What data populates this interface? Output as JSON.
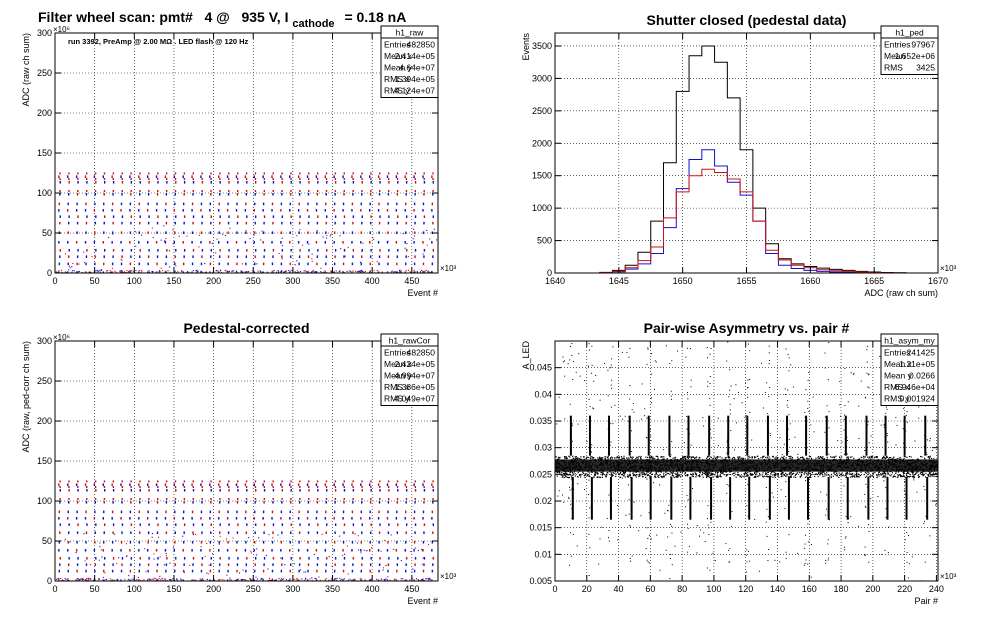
{
  "page_title": {
    "prefix": "Filter wheel scan: pmt#   4 @   935 V, I",
    "subscript": "cathode",
    "suffix": "= 0.18 nA"
  },
  "chart_data": [
    {
      "id": "raw",
      "type": "scatter",
      "title": "",
      "annotation": "run 3392, PreAmp @ 2.00 MΩ . LED flash @  120 Hz",
      "xlabel": "Event #",
      "ylabel": "ADC (raw ch sum)",
      "x_exponent": "×10³",
      "y_exponent": "×10⁶",
      "xlim": [
        0,
        483
      ],
      "ylim": [
        0,
        300
      ],
      "xticks": [
        0,
        50,
        100,
        150,
        200,
        250,
        300,
        350,
        400,
        450
      ],
      "yticks": [
        0,
        50,
        100,
        150,
        200,
        250,
        300
      ],
      "levels": [
        2,
        13,
        22,
        30,
        40,
        52,
        64,
        72,
        80,
        88,
        100,
        115,
        122
      ],
      "stats": {
        "name": "h1_raw",
        "rows": [
          [
            "Entries",
            "482850"
          ],
          [
            "Mean x",
            "2.414e+05"
          ],
          [
            "Mean y",
            "4.64e+07"
          ],
          [
            "RMS x",
            "1.394e+05"
          ],
          [
            "RMS y",
            "4.124e+07"
          ]
        ]
      },
      "grid": true
    },
    {
      "id": "ped",
      "type": "line",
      "title": "Shutter closed (pedestal data)",
      "xlabel": "ADC (raw ch sum)",
      "ylabel": "Events",
      "x_exponent": "×10³",
      "xlim": [
        1640,
        1670
      ],
      "ylim": [
        0,
        3700
      ],
      "xticks": [
        1640,
        1645,
        1650,
        1655,
        1660,
        1665,
        1670
      ],
      "yticks": [
        0,
        500,
        1000,
        1500,
        2000,
        2500,
        3000,
        3500
      ],
      "x": [
        1643,
        1644,
        1645,
        1646,
        1647,
        1648,
        1649,
        1650,
        1651,
        1652,
        1653,
        1654,
        1655,
        1656,
        1657,
        1658,
        1659,
        1660,
        1661,
        1662,
        1663,
        1664,
        1665,
        1666,
        1667
      ],
      "series": [
        {
          "color": "#000000",
          "values": [
            0,
            10,
            40,
            120,
            320,
            800,
            1700,
            2800,
            3350,
            3500,
            3250,
            2700,
            1900,
            1000,
            450,
            220,
            140,
            100,
            75,
            55,
            40,
            25,
            15,
            8,
            3
          ]
        },
        {
          "color": "#1010d0",
          "values": [
            0,
            5,
            20,
            60,
            140,
            300,
            700,
            1300,
            1750,
            1900,
            1650,
            1400,
            1200,
            800,
            300,
            120,
            70,
            40,
            25,
            15,
            10,
            5,
            3,
            1,
            0
          ]
        },
        {
          "color": "#d01010",
          "values": [
            0,
            5,
            25,
            80,
            190,
            400,
            850,
            1250,
            1500,
            1600,
            1550,
            1450,
            1250,
            800,
            350,
            200,
            120,
            80,
            50,
            35,
            25,
            15,
            8,
            4,
            1
          ]
        }
      ],
      "stats": {
        "name": "h1_ped",
        "rows": [
          [
            "Entries",
            "97967"
          ],
          [
            "Mean",
            "1.652e+06"
          ],
          [
            "RMS",
            "3425"
          ]
        ]
      },
      "grid": true
    },
    {
      "id": "cor",
      "type": "scatter",
      "title": "Pedestal-corrected",
      "xlabel": "Event #",
      "ylabel": "ADC (raw, ped-corr ch sum)",
      "x_exponent": "×10³",
      "y_exponent": "×10⁶",
      "xlim": [
        0,
        483
      ],
      "ylim": [
        0,
        300
      ],
      "xticks": [
        0,
        50,
        100,
        150,
        200,
        250,
        300,
        350,
        400,
        450
      ],
      "yticks": [
        0,
        50,
        100,
        150,
        200,
        250,
        300
      ],
      "levels": [
        2,
        14,
        22,
        30,
        40,
        50,
        62,
        72,
        80,
        88,
        100,
        115,
        122
      ],
      "stats": {
        "name": "h1_rawCor",
        "rows": [
          [
            "Entries",
            "482850"
          ],
          [
            "Mean x",
            "2.424e+05"
          ],
          [
            "Mean y",
            "4.994e+07"
          ],
          [
            "RMS x",
            "1.386e+05"
          ],
          [
            "RMS y",
            "4.049e+07"
          ]
        ]
      },
      "grid": true
    },
    {
      "id": "asym",
      "type": "scatter",
      "title": "Pair-wise Asymmetry vs. pair #",
      "xlabel": "Pair #",
      "ylabel": "A_LED",
      "x_exponent": "×10³",
      "xlim": [
        0,
        241
      ],
      "ylim": [
        0.005,
        0.05
      ],
      "xticks": [
        0,
        20,
        40,
        60,
        80,
        100,
        120,
        140,
        160,
        180,
        200,
        220,
        240
      ],
      "yticks": [
        0.005,
        0.01,
        0.015,
        0.02,
        0.025,
        0.03,
        0.035,
        0.04,
        0.045
      ],
      "band": [
        0.0245,
        0.0285
      ],
      "spike_x": [
        10,
        22,
        34,
        47,
        59,
        72,
        84,
        97,
        109,
        121,
        134,
        146,
        158,
        171,
        183,
        196,
        208,
        220,
        233
      ],
      "stats": {
        "name": "h1_asym_my",
        "rows": [
          [
            "Entries",
            "241425"
          ],
          [
            "Mean x",
            "1.21e+05"
          ],
          [
            "Mean y",
            "0.0266"
          ],
          [
            "RMS x",
            "6.946e+04"
          ],
          [
            "RMS y",
            "0.001924"
          ]
        ]
      },
      "grid": true
    }
  ]
}
